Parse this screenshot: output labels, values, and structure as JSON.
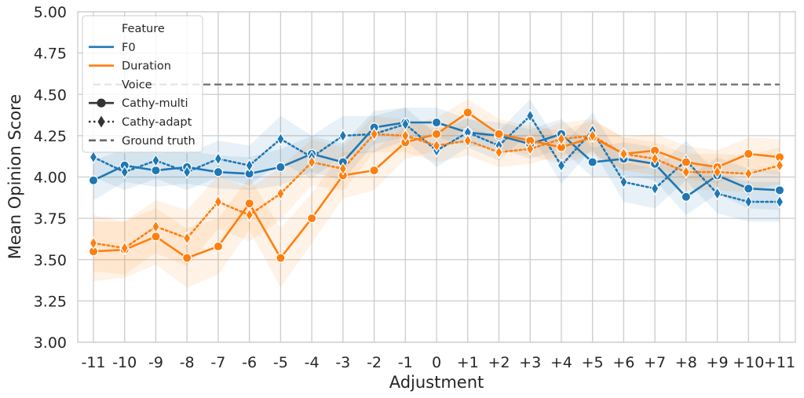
{
  "chart_data": {
    "type": "line",
    "title": "",
    "xlabel": "Adjustment",
    "ylabel": "Mean Opinion Score",
    "categories": [
      "-11",
      "-10",
      "-9",
      "-8",
      "-7",
      "-6",
      "-5",
      "-4",
      "-3",
      "-2",
      "-1",
      "0",
      "+1",
      "+2",
      "+3",
      "+4",
      "+5",
      "+6",
      "+7",
      "+8",
      "+9",
      "+10",
      "+11"
    ],
    "ylim": [
      3.0,
      5.0
    ],
    "yticks": [
      3.0,
      3.25,
      3.5,
      3.75,
      4.0,
      4.25,
      4.5,
      4.75,
      5.0
    ],
    "ytick_labels": [
      "3.00",
      "3.25",
      "3.50",
      "3.75",
      "4.00",
      "4.25",
      "4.50",
      "4.75",
      "5.00"
    ],
    "grid": true,
    "legend_position": "top-left",
    "ground_truth": 4.56,
    "series": [
      {
        "feature": "F0",
        "voice": "Cathy-multi",
        "color": "#1f77b4",
        "style": "solid",
        "marker": "circle",
        "values": [
          3.98,
          4.07,
          4.04,
          4.06,
          4.03,
          4.02,
          4.06,
          4.14,
          4.09,
          4.3,
          4.33,
          4.33,
          4.27,
          4.25,
          4.2,
          4.26,
          4.09,
          4.11,
          4.08,
          3.88,
          4.01,
          3.93,
          3.92
        ],
        "band_half_width": [
          0.12,
          0.1,
          0.1,
          0.1,
          0.1,
          0.1,
          0.11,
          0.11,
          0.11,
          0.1,
          0.09,
          0.09,
          0.08,
          0.08,
          0.09,
          0.09,
          0.09,
          0.1,
          0.1,
          0.11,
          0.11,
          0.12,
          0.12
        ]
      },
      {
        "feature": "F0",
        "voice": "Cathy-adapt",
        "color": "#1f77b4",
        "style": "dotted",
        "marker": "diamond",
        "values": [
          4.12,
          4.03,
          4.1,
          4.03,
          4.11,
          4.07,
          4.23,
          4.12,
          4.25,
          4.26,
          4.32,
          4.16,
          4.27,
          4.19,
          4.37,
          4.07,
          4.28,
          3.97,
          3.93,
          4.1,
          3.9,
          3.85,
          3.85
        ],
        "band_half_width": [
          0.12,
          0.11,
          0.11,
          0.11,
          0.11,
          0.12,
          0.14,
          0.13,
          0.12,
          0.11,
          0.1,
          0.1,
          0.09,
          0.09,
          0.1,
          0.11,
          0.11,
          0.12,
          0.12,
          0.12,
          0.12,
          0.12,
          0.12
        ]
      },
      {
        "feature": "Duration",
        "voice": "Cathy-multi",
        "color": "#ff7f0e",
        "style": "solid",
        "marker": "circle",
        "values": [
          3.55,
          3.56,
          3.64,
          3.51,
          3.58,
          3.84,
          3.51,
          3.75,
          4.01,
          4.04,
          4.21,
          4.26,
          4.39,
          4.26,
          4.22,
          4.18,
          4.24,
          4.14,
          4.16,
          4.09,
          4.06,
          4.14,
          4.12
        ],
        "band_half_width": [
          0.18,
          0.17,
          0.17,
          0.18,
          0.17,
          0.16,
          0.18,
          0.15,
          0.14,
          0.12,
          0.1,
          0.1,
          0.08,
          0.09,
          0.09,
          0.1,
          0.1,
          0.1,
          0.1,
          0.1,
          0.1,
          0.1,
          0.11
        ]
      },
      {
        "feature": "Duration",
        "voice": "Cathy-adapt",
        "color": "#ff7f0e",
        "style": "dotted",
        "marker": "diamond",
        "values": [
          3.6,
          3.57,
          3.7,
          3.63,
          3.85,
          3.77,
          3.9,
          4.09,
          4.05,
          4.26,
          4.25,
          4.19,
          4.22,
          4.15,
          4.17,
          4.23,
          4.25,
          4.14,
          4.11,
          4.03,
          4.03,
          4.02,
          4.07
        ],
        "band_half_width": [
          0.17,
          0.16,
          0.16,
          0.17,
          0.16,
          0.16,
          0.16,
          0.14,
          0.13,
          0.11,
          0.1,
          0.1,
          0.09,
          0.09,
          0.09,
          0.1,
          0.1,
          0.1,
          0.1,
          0.11,
          0.11,
          0.11,
          0.11
        ]
      }
    ],
    "legend": [
      {
        "kind": "header",
        "label": "Feature"
      },
      {
        "kind": "line",
        "label": "F0",
        "color": "#1f77b4",
        "style": "solid"
      },
      {
        "kind": "line",
        "label": "Duration",
        "color": "#ff7f0e",
        "style": "solid"
      },
      {
        "kind": "header",
        "label": "Voice"
      },
      {
        "kind": "marker",
        "label": "Cathy-multi",
        "color": "#333333",
        "style": "solid",
        "marker": "circle"
      },
      {
        "kind": "marker",
        "label": "Cathy-adapt",
        "color": "#333333",
        "style": "dotted",
        "marker": "diamond"
      },
      {
        "kind": "line",
        "label": "Ground truth",
        "color": "#666666",
        "style": "dashed"
      }
    ]
  }
}
